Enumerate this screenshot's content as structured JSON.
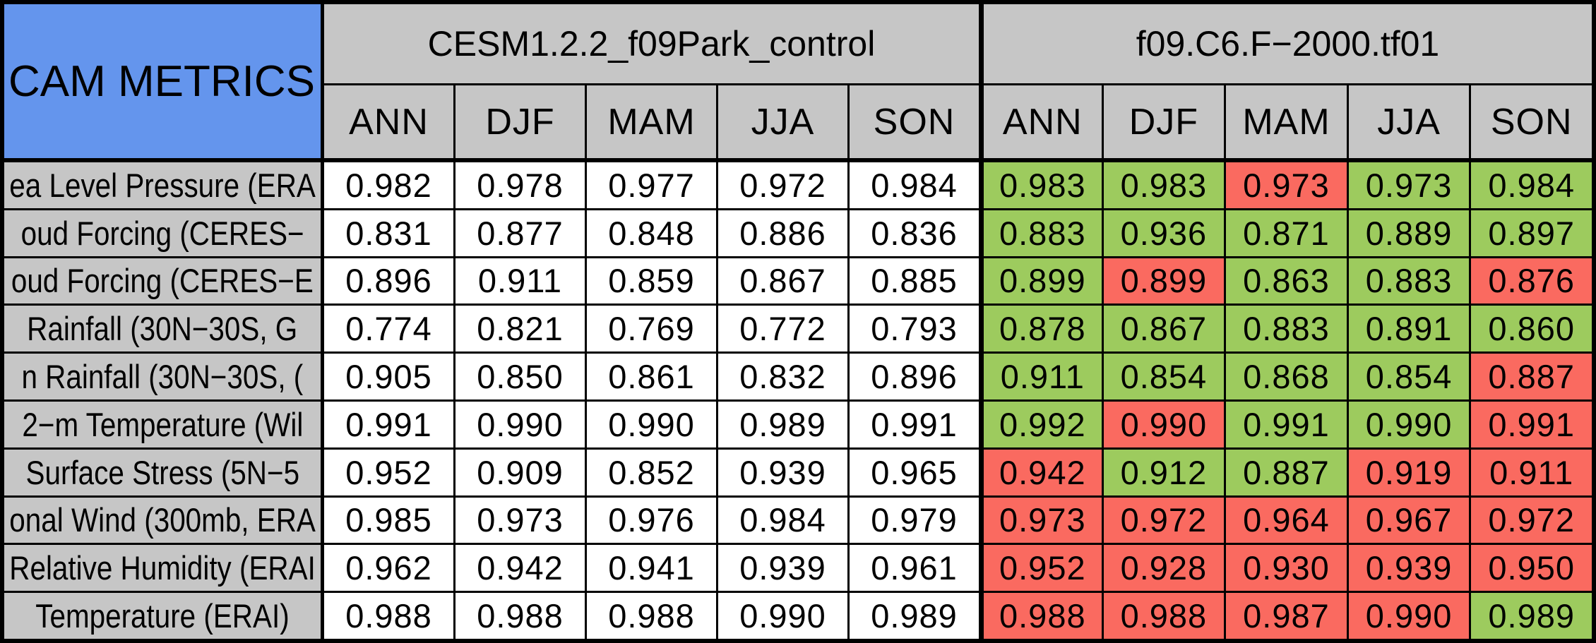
{
  "chart_data": {
    "type": "table",
    "title_cell": "CAM METRICS",
    "colors": {
      "corner_blue": "#6495ed",
      "header_gray": "#c6c6c6",
      "pass_green": "#9dcb5e",
      "fail_red": "#fa6a60",
      "control_white": "#ffffff",
      "grid_black": "#000000"
    },
    "groups": [
      {
        "name": "CESM1.2.2_f09Park_control",
        "seasons": [
          "ANN",
          "DJF",
          "MAM",
          "JJA",
          "SON"
        ]
      },
      {
        "name": "f09.C6.F−2000.tf01",
        "seasons": [
          "ANN",
          "DJF",
          "MAM",
          "JJA",
          "SON"
        ]
      }
    ],
    "rows": [
      {
        "label": "ea Level Pressure (ERA",
        "control": [
          "0.982",
          "0.978",
          "0.977",
          "0.972",
          "0.984"
        ],
        "test": [
          "0.983",
          "0.983",
          "0.973",
          "0.973",
          "0.984"
        ],
        "test_colors": [
          "g",
          "g",
          "r",
          "g",
          "g"
        ]
      },
      {
        "label": "oud Forcing (CERES−",
        "control": [
          "0.831",
          "0.877",
          "0.848",
          "0.886",
          "0.836"
        ],
        "test": [
          "0.883",
          "0.936",
          "0.871",
          "0.889",
          "0.897"
        ],
        "test_colors": [
          "g",
          "g",
          "g",
          "g",
          "g"
        ]
      },
      {
        "label": "oud Forcing (CERES−E",
        "control": [
          "0.896",
          "0.911",
          "0.859",
          "0.867",
          "0.885"
        ],
        "test": [
          "0.899",
          "0.899",
          "0.863",
          "0.883",
          "0.876"
        ],
        "test_colors": [
          "g",
          "r",
          "g",
          "g",
          "r"
        ]
      },
      {
        "label": "Rainfall (30N−30S, G",
        "control": [
          "0.774",
          "0.821",
          "0.769",
          "0.772",
          "0.793"
        ],
        "test": [
          "0.878",
          "0.867",
          "0.883",
          "0.891",
          "0.860"
        ],
        "test_colors": [
          "g",
          "g",
          "g",
          "g",
          "g"
        ]
      },
      {
        "label": "n Rainfall (30N−30S, (",
        "control": [
          "0.905",
          "0.850",
          "0.861",
          "0.832",
          "0.896"
        ],
        "test": [
          "0.911",
          "0.854",
          "0.868",
          "0.854",
          "0.887"
        ],
        "test_colors": [
          "g",
          "g",
          "g",
          "g",
          "r"
        ]
      },
      {
        "label": "2−m Temperature (Wil",
        "control": [
          "0.991",
          "0.990",
          "0.990",
          "0.989",
          "0.991"
        ],
        "test": [
          "0.992",
          "0.990",
          "0.991",
          "0.990",
          "0.991"
        ],
        "test_colors": [
          "g",
          "r",
          "g",
          "g",
          "r"
        ]
      },
      {
        "label": "Surface Stress (5N−5",
        "control": [
          "0.952",
          "0.909",
          "0.852",
          "0.939",
          "0.965"
        ],
        "test": [
          "0.942",
          "0.912",
          "0.887",
          "0.919",
          "0.911"
        ],
        "test_colors": [
          "r",
          "g",
          "g",
          "r",
          "r"
        ]
      },
      {
        "label": "onal Wind (300mb, ERA",
        "control": [
          "0.985",
          "0.973",
          "0.976",
          "0.984",
          "0.979"
        ],
        "test": [
          "0.973",
          "0.972",
          "0.964",
          "0.967",
          "0.972"
        ],
        "test_colors": [
          "r",
          "r",
          "r",
          "r",
          "r"
        ]
      },
      {
        "label": "Relative Humidity (ERAI",
        "control": [
          "0.962",
          "0.942",
          "0.941",
          "0.939",
          "0.961"
        ],
        "test": [
          "0.952",
          "0.928",
          "0.930",
          "0.939",
          "0.950"
        ],
        "test_colors": [
          "r",
          "r",
          "r",
          "r",
          "r"
        ]
      },
      {
        "label": "Temperature (ERAI)",
        "control": [
          "0.988",
          "0.988",
          "0.988",
          "0.990",
          "0.989"
        ],
        "test": [
          "0.988",
          "0.988",
          "0.987",
          "0.990",
          "0.989"
        ],
        "test_colors": [
          "r",
          "r",
          "r",
          "r",
          "g"
        ]
      }
    ]
  }
}
